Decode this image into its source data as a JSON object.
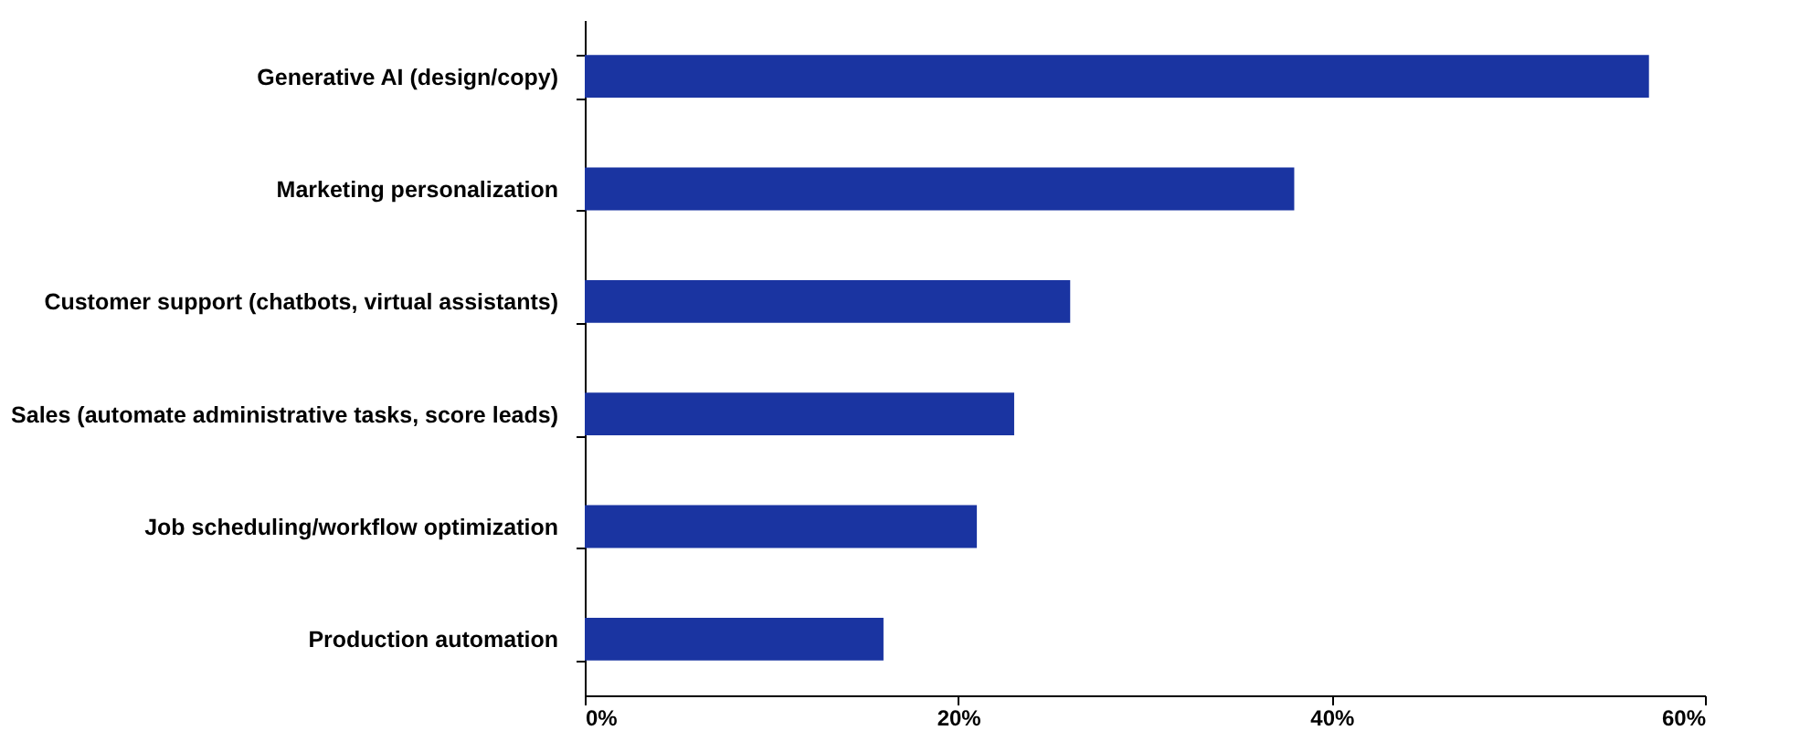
{
  "chart_data": {
    "type": "bar",
    "orientation": "horizontal",
    "categories": [
      "Generative AI (design/copy)",
      "Marketing personalization",
      "Customer support (chatbots, virtual assistants)",
      "Sales (automate administrative tasks, score leads)",
      "Job scheduling/workflow optimization",
      "Production automation"
    ],
    "values": [
      57,
      38,
      26,
      23,
      21,
      16
    ],
    "color": "#1a34a1",
    "xlim": [
      0,
      60
    ],
    "xticks": [
      {
        "value": 0,
        "label": "0%"
      },
      {
        "value": 20,
        "label": "20%"
      },
      {
        "value": 40,
        "label": "40%"
      },
      {
        "value": 60,
        "label": "60%"
      }
    ],
    "grid": false
  }
}
